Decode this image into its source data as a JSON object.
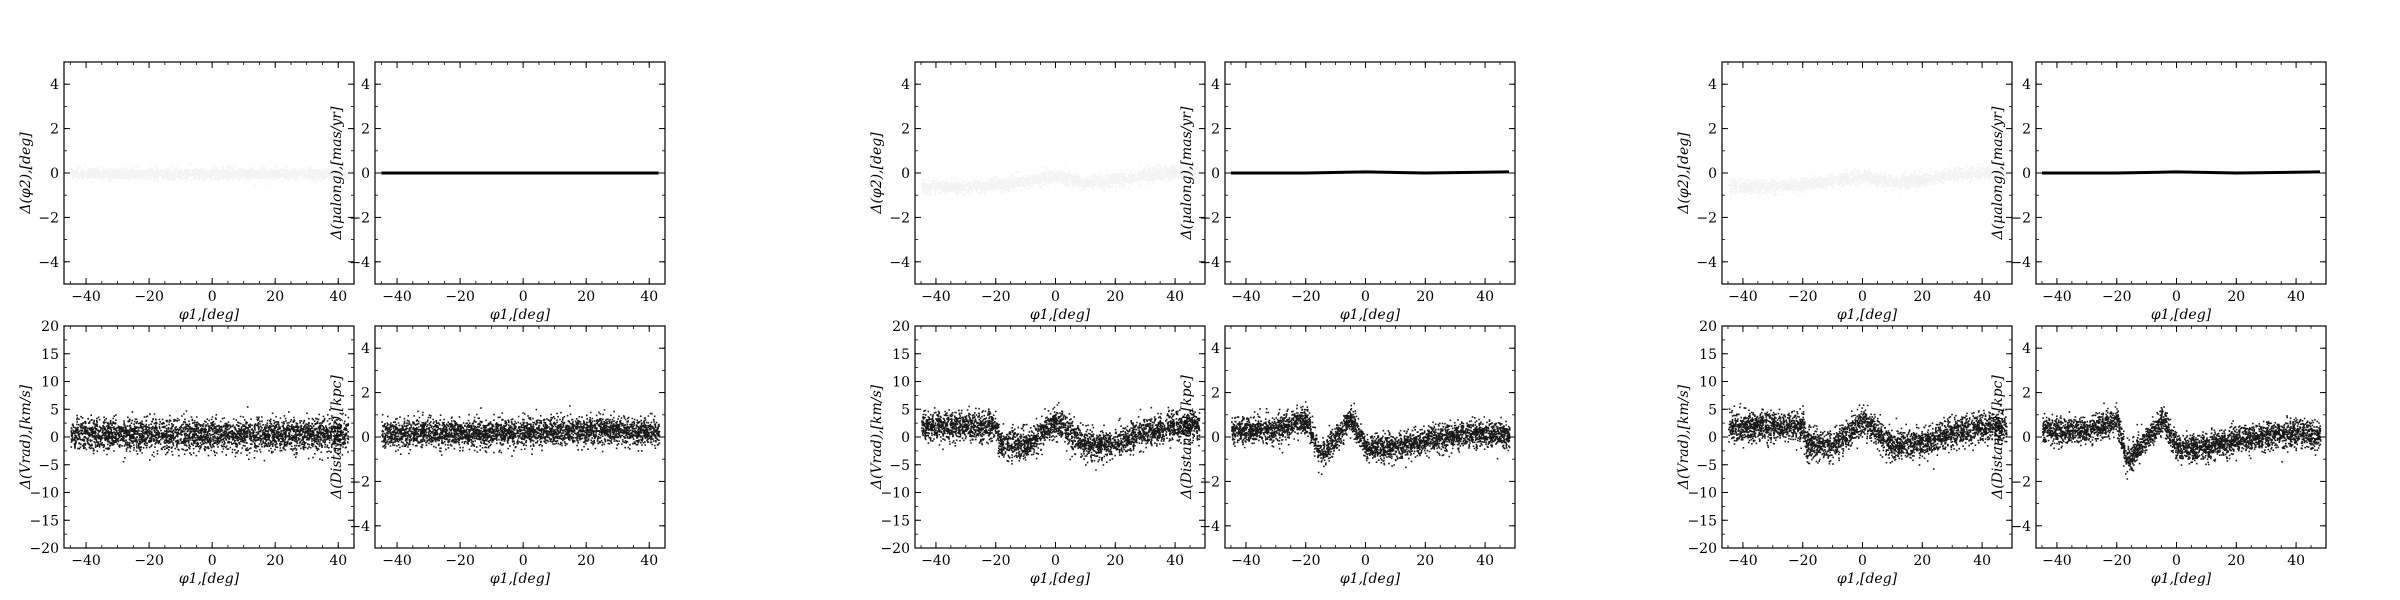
{
  "figure": {
    "title": "",
    "groups": [
      {
        "name": "left",
        "panels": [
          {
            "type": "scatter",
            "xlabel": "φ1,[deg]",
            "ylabel": "Δ(φ2),[deg]",
            "xlim": [
              -47,
              45
            ],
            "ylim": [
              -5,
              5
            ],
            "xticks": [
              -40,
              -20,
              0,
              20,
              40
            ],
            "yticks": [
              -4,
              -2,
              0,
              2,
              4
            ],
            "grid": false,
            "marker_color": "#333333",
            "marker_alpha": 0.06,
            "trend": {
              "x": [
                -45,
                -30,
                -15,
                0,
                15,
                30,
                43
              ],
              "y": [
                0.0,
                0.0,
                0.0,
                0.0,
                0.0,
                0.0,
                0.0
              ]
            },
            "spread": 0.12
          },
          {
            "type": "line",
            "xlabel": "φ1,[deg]",
            "ylabel": "Δ(μalong),[mas/yr]",
            "xlim": [
              -47,
              45
            ],
            "ylim": [
              -5,
              5
            ],
            "xticks": [
              -40,
              -20,
              0,
              20,
              40
            ],
            "yticks": [
              -4,
              -2,
              0,
              2,
              4
            ],
            "grid": false,
            "series": [
              {
                "x": [
                  -45,
                  43
                ],
                "y": [
                  0.0,
                  0.0
                ]
              }
            ]
          },
          {
            "type": "scatter",
            "xlabel": "φ1,[deg]",
            "ylabel": "Δ(Vrad),[km/s]",
            "xlim": [
              -47,
              45
            ],
            "ylim": [
              -20,
              20
            ],
            "xticks": [
              -40,
              -20,
              0,
              20,
              40
            ],
            "yticks": [
              -20,
              -15,
              -10,
              -5,
              0,
              5,
              10,
              15,
              20
            ],
            "grid": false,
            "marker_color": "#000000",
            "marker_alpha": 0.9,
            "trend": {
              "x": [
                -45,
                -30,
                -15,
                0,
                15,
                30,
                43
              ],
              "y": [
                0.5,
                0.5,
                0.5,
                0.5,
                0.5,
                0.5,
                0.5
              ]
            },
            "spread": 1.4
          },
          {
            "type": "scatter",
            "xlabel": "φ1,[deg]",
            "ylabel": "Δ(Distance),[kpc]",
            "xlim": [
              -47,
              45
            ],
            "ylim": [
              -5,
              5
            ],
            "xticks": [
              -40,
              -20,
              0,
              20,
              40
            ],
            "yticks": [
              -4,
              -2,
              0,
              2,
              4
            ],
            "grid": false,
            "marker_color": "#000000",
            "marker_alpha": 0.9,
            "trend": {
              "x": [
                -45,
                -30,
                -15,
                0,
                15,
                30,
                43
              ],
              "y": [
                0.2,
                0.2,
                0.2,
                0.25,
                0.3,
                0.3,
                0.25
              ]
            },
            "spread": 0.3
          }
        ]
      },
      {
        "name": "middle",
        "panels": [
          {
            "type": "scatter",
            "xlabel": "φ1,[deg]",
            "ylabel": "Δ(φ2),[deg]",
            "xlim": [
              -47,
              50
            ],
            "ylim": [
              -5,
              5
            ],
            "xticks": [
              -40,
              -20,
              0,
              20,
              40
            ],
            "yticks": [
              -4,
              -2,
              0,
              2,
              4
            ],
            "grid": false,
            "marker_color": "#333333",
            "marker_alpha": 0.06,
            "trend": {
              "x": [
                -45,
                -35,
                -25,
                -20,
                -10,
                0,
                10,
                20,
                30,
                40,
                48
              ],
              "y": [
                -0.6,
                -0.6,
                -0.55,
                -0.5,
                -0.35,
                -0.1,
                -0.4,
                -0.3,
                -0.05,
                0.05,
                0.0
              ]
            },
            "spread": 0.15
          },
          {
            "type": "line",
            "xlabel": "φ1,[deg]",
            "ylabel": "Δ(μalong),[mas/yr]",
            "xlim": [
              -47,
              50
            ],
            "ylim": [
              -5,
              5
            ],
            "xticks": [
              -40,
              -20,
              0,
              20,
              40
            ],
            "yticks": [
              -4,
              -2,
              0,
              2,
              4
            ],
            "grid": false,
            "series": [
              {
                "x": [
                  -45,
                  -20,
                  0,
                  20,
                  48
                ],
                "y": [
                  0.0,
                  0.0,
                  0.05,
                  0.0,
                  0.05
                ]
              }
            ]
          },
          {
            "type": "scatter",
            "xlabel": "φ1,[deg]",
            "ylabel": "Δ(Vrad),[km/s]",
            "xlim": [
              -47,
              50
            ],
            "ylim": [
              -20,
              20
            ],
            "xticks": [
              -40,
              -20,
              0,
              20,
              40
            ],
            "yticks": [
              -20,
              -15,
              -10,
              -5,
              0,
              5,
              10,
              15,
              20
            ],
            "grid": false,
            "marker_color": "#000000",
            "marker_alpha": 0.9,
            "trend": {
              "x": [
                -45,
                -30,
                -20,
                -19,
                -10,
                0,
                10,
                20,
                30,
                40,
                48
              ],
              "y": [
                2.0,
                2.0,
                2.0,
                -1.0,
                -1.5,
                3.0,
                -1.5,
                -1.0,
                1.0,
                2.0,
                2.0
              ]
            },
            "spread": 1.3
          },
          {
            "type": "scatter",
            "xlabel": "φ1,[deg]",
            "ylabel": "Δ(Distance),[kpc]",
            "xlim": [
              -47,
              50
            ],
            "ylim": [
              -5,
              5
            ],
            "xticks": [
              -40,
              -20,
              0,
              20,
              40
            ],
            "yticks": [
              -4,
              -2,
              0,
              2,
              4
            ],
            "grid": false,
            "marker_color": "#000000",
            "marker_alpha": 0.9,
            "trend": {
              "x": [
                -45,
                -30,
                -20,
                -15,
                -8,
                -5,
                0,
                10,
                20,
                30,
                40,
                48
              ],
              "y": [
                0.3,
                0.4,
                0.8,
                -0.8,
                0.3,
                0.9,
                -0.5,
                -0.4,
                -0.1,
                0.1,
                0.2,
                0.1
              ]
            },
            "spread": 0.3
          }
        ]
      },
      {
        "name": "right",
        "panels": [
          {
            "type": "scatter",
            "xlabel": "φ1,[deg]",
            "ylabel": "Δ(φ2),[deg]",
            "xlim": [
              -47,
              50
            ],
            "ylim": [
              -5,
              5
            ],
            "xticks": [
              -40,
              -20,
              0,
              20,
              40
            ],
            "yticks": [
              -4,
              -2,
              0,
              2,
              4
            ],
            "grid": false,
            "marker_color": "#333333",
            "marker_alpha": 0.06,
            "trend": {
              "x": [
                -45,
                -35,
                -25,
                -20,
                -10,
                0,
                10,
                20,
                30,
                40,
                48
              ],
              "y": [
                -0.6,
                -0.6,
                -0.55,
                -0.5,
                -0.35,
                -0.1,
                -0.4,
                -0.3,
                -0.05,
                0.05,
                0.0
              ]
            },
            "spread": 0.15
          },
          {
            "type": "line",
            "xlabel": "φ1,[deg]",
            "ylabel": "Δ(μalong),[mas/yr]",
            "xlim": [
              -47,
              50
            ],
            "ylim": [
              -5,
              5
            ],
            "xticks": [
              -40,
              -20,
              0,
              20,
              40
            ],
            "yticks": [
              -4,
              -2,
              0,
              2,
              4
            ],
            "grid": false,
            "series": [
              {
                "x": [
                  -45,
                  -20,
                  0,
                  20,
                  48
                ],
                "y": [
                  0.0,
                  0.0,
                  0.05,
                  0.0,
                  0.05
                ]
              }
            ]
          },
          {
            "type": "scatter",
            "xlabel": "φ1,[deg]",
            "ylabel": "Δ(Vrad),[km/s]",
            "xlim": [
              -47,
              50
            ],
            "ylim": [
              -20,
              20
            ],
            "xticks": [
              -40,
              -20,
              0,
              20,
              40
            ],
            "yticks": [
              -20,
              -15,
              -10,
              -5,
              0,
              5,
              10,
              15,
              20
            ],
            "grid": false,
            "marker_color": "#000000",
            "marker_alpha": 0.9,
            "trend": {
              "x": [
                -45,
                -30,
                -20,
                -19,
                -10,
                0,
                10,
                20,
                30,
                40,
                48
              ],
              "y": [
                2.0,
                2.0,
                2.0,
                -1.0,
                -1.5,
                3.0,
                -1.5,
                -1.0,
                1.0,
                2.0,
                2.0
              ]
            },
            "spread": 1.3
          },
          {
            "type": "scatter",
            "xlabel": "φ1,[deg]",
            "ylabel": "Δ(Distance),[kpc]",
            "xlim": [
              -47,
              50
            ],
            "ylim": [
              -5,
              5
            ],
            "xticks": [
              -40,
              -20,
              0,
              20,
              40
            ],
            "yticks": [
              -4,
              -2,
              0,
              2,
              4
            ],
            "grid": false,
            "marker_color": "#000000",
            "marker_alpha": 0.9,
            "trend": {
              "x": [
                -45,
                -30,
                -20,
                -17,
                -8,
                -5,
                0,
                10,
                20,
                30,
                40,
                48
              ],
              "y": [
                0.3,
                0.3,
                0.8,
                -1.0,
                0.2,
                0.8,
                -0.5,
                -0.4,
                -0.1,
                0.1,
                0.2,
                0.1
              ]
            },
            "spread": 0.3
          }
        ]
      }
    ]
  }
}
